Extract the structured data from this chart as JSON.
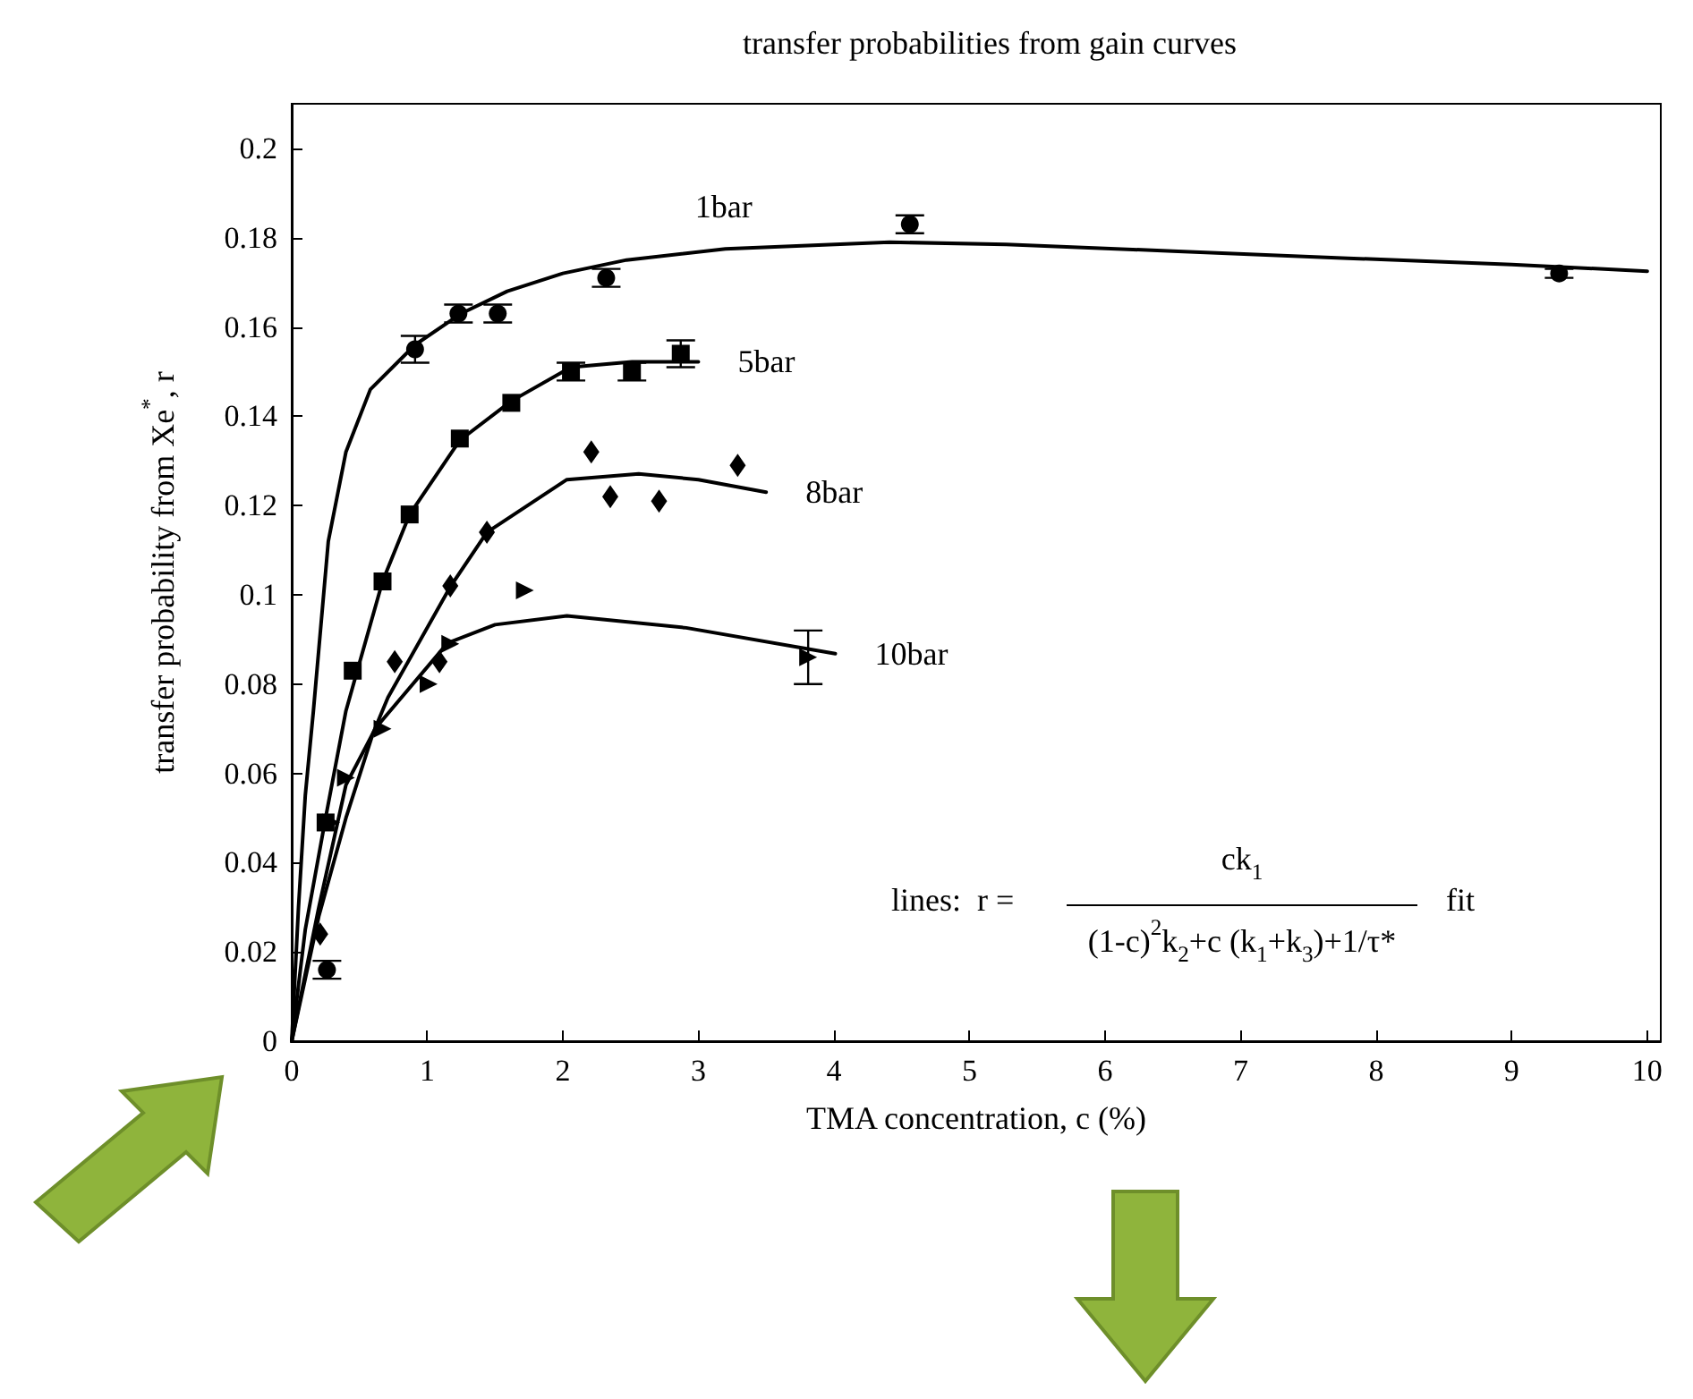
{
  "chart_data": {
    "type": "scatter",
    "title": "transfer probabilities from gain curves",
    "xlabel": "TMA concentration, c (%)",
    "ylabel": "transfer probability from Xe$^{*}$, r",
    "xlim": [
      0,
      10.1
    ],
    "xticks": [
      0,
      1,
      2,
      3,
      4,
      5,
      6,
      7,
      8,
      9,
      10
    ],
    "ylim": [
      0,
      0.21
    ],
    "yticks": [
      0,
      0.02,
      0.04,
      0.06,
      0.08,
      0.1,
      0.12,
      0.14,
      0.16,
      0.18,
      0.2
    ],
    "grid": false,
    "legend": false,
    "annotations": [
      "lines:  r =",
      "ck$_{1}$",
      "(1-c)$^{2}$k$_{2}$+c (k$_{1}$+k$_{3}$)+1/τ*",
      "fit"
    ],
    "series": [
      {
        "name": "1bar",
        "type": "line",
        "marker": "none",
        "color": "#000000",
        "x": [
          0,
          0.05,
          0.1,
          0.16,
          0.27,
          0.4,
          0.58,
          0.91,
          1.25,
          1.59,
          2.0,
          2.47,
          3.2,
          4.41,
          5.27,
          6.5,
          7.79,
          9.0,
          10
        ],
        "values": [
          0,
          0.03,
          0.055,
          0.074,
          0.112,
          0.132,
          0.146,
          0.156,
          0.163,
          0.168,
          0.172,
          0.175,
          0.1775,
          0.179,
          0.1785,
          0.177,
          0.1754,
          0.174,
          0.1725
        ]
      },
      {
        "name": "5bar",
        "type": "line",
        "marker": "none",
        "color": "#000000",
        "x": [
          0,
          0.1,
          0.25,
          0.4,
          0.67,
          0.87,
          1.24,
          1.62,
          2.06,
          2.51,
          3.0
        ],
        "values": [
          0,
          0.025,
          0.05,
          0.074,
          0.103,
          0.118,
          0.1346,
          0.1434,
          0.151,
          0.1522,
          0.1522
        ]
      },
      {
        "name": "8bar",
        "type": "line",
        "marker": "none",
        "color": "#000000",
        "x": [
          0,
          0.2,
          0.4,
          0.6,
          0.71,
          1.17,
          1.44,
          2.03,
          2.56,
          3.0,
          3.5
        ],
        "values": [
          0,
          0.028,
          0.05,
          0.069,
          0.077,
          0.1018,
          0.114,
          0.1258,
          0.1271,
          0.1258,
          0.123
        ]
      },
      {
        "name": "10bar",
        "type": "line",
        "marker": "none",
        "color": "#000000",
        "x": [
          0,
          0.2,
          0.4,
          0.62,
          1.15,
          1.5,
          2.03,
          2.91,
          4.01
        ],
        "values": [
          0,
          0.03,
          0.0574,
          0.0702,
          0.0892,
          0.0933,
          0.0953,
          0.0926,
          0.0868
        ]
      },
      {
        "marker": "circle",
        "color": "#000000",
        "x": [
          0.26,
          0.91,
          1.23,
          1.52,
          2.32,
          4.56,
          9.35
        ],
        "values": [
          0.016,
          0.155,
          0.163,
          0.163,
          0.171,
          0.183,
          0.172
        ],
        "errors": [
          0.002,
          0.003,
          0.002,
          0.002,
          0.002,
          0.002,
          0.001
        ]
      },
      {
        "marker": "square",
        "color": "#000000",
        "x": [
          0.25,
          0.45,
          0.67,
          0.87,
          1.24,
          1.62,
          2.06,
          2.51,
          2.87
        ],
        "values": [
          0.049,
          0.083,
          0.103,
          0.118,
          0.135,
          0.143,
          0.15,
          0.15,
          0.154
        ],
        "errors": [
          null,
          null,
          null,
          null,
          null,
          null,
          0.002,
          0.002,
          0.003
        ]
      },
      {
        "marker": "diamond",
        "color": "#000000",
        "x": [
          0.21,
          0.76,
          1.09,
          1.17,
          1.44,
          2.21,
          2.35,
          2.71,
          3.29
        ],
        "values": [
          0.024,
          0.085,
          0.085,
          0.102,
          0.114,
          0.132,
          0.122,
          0.121,
          0.129
        ]
      },
      {
        "marker": "triangle",
        "color": "#000000",
        "x": [
          0.29,
          0.4,
          0.67,
          1.01,
          1.17,
          1.72,
          3.81
        ],
        "values": [
          0.049,
          0.059,
          0.07,
          0.08,
          0.089,
          0.101,
          0.086
        ],
        "errors": [
          null,
          null,
          null,
          null,
          null,
          null,
          0.006
        ]
      }
    ]
  }
}
